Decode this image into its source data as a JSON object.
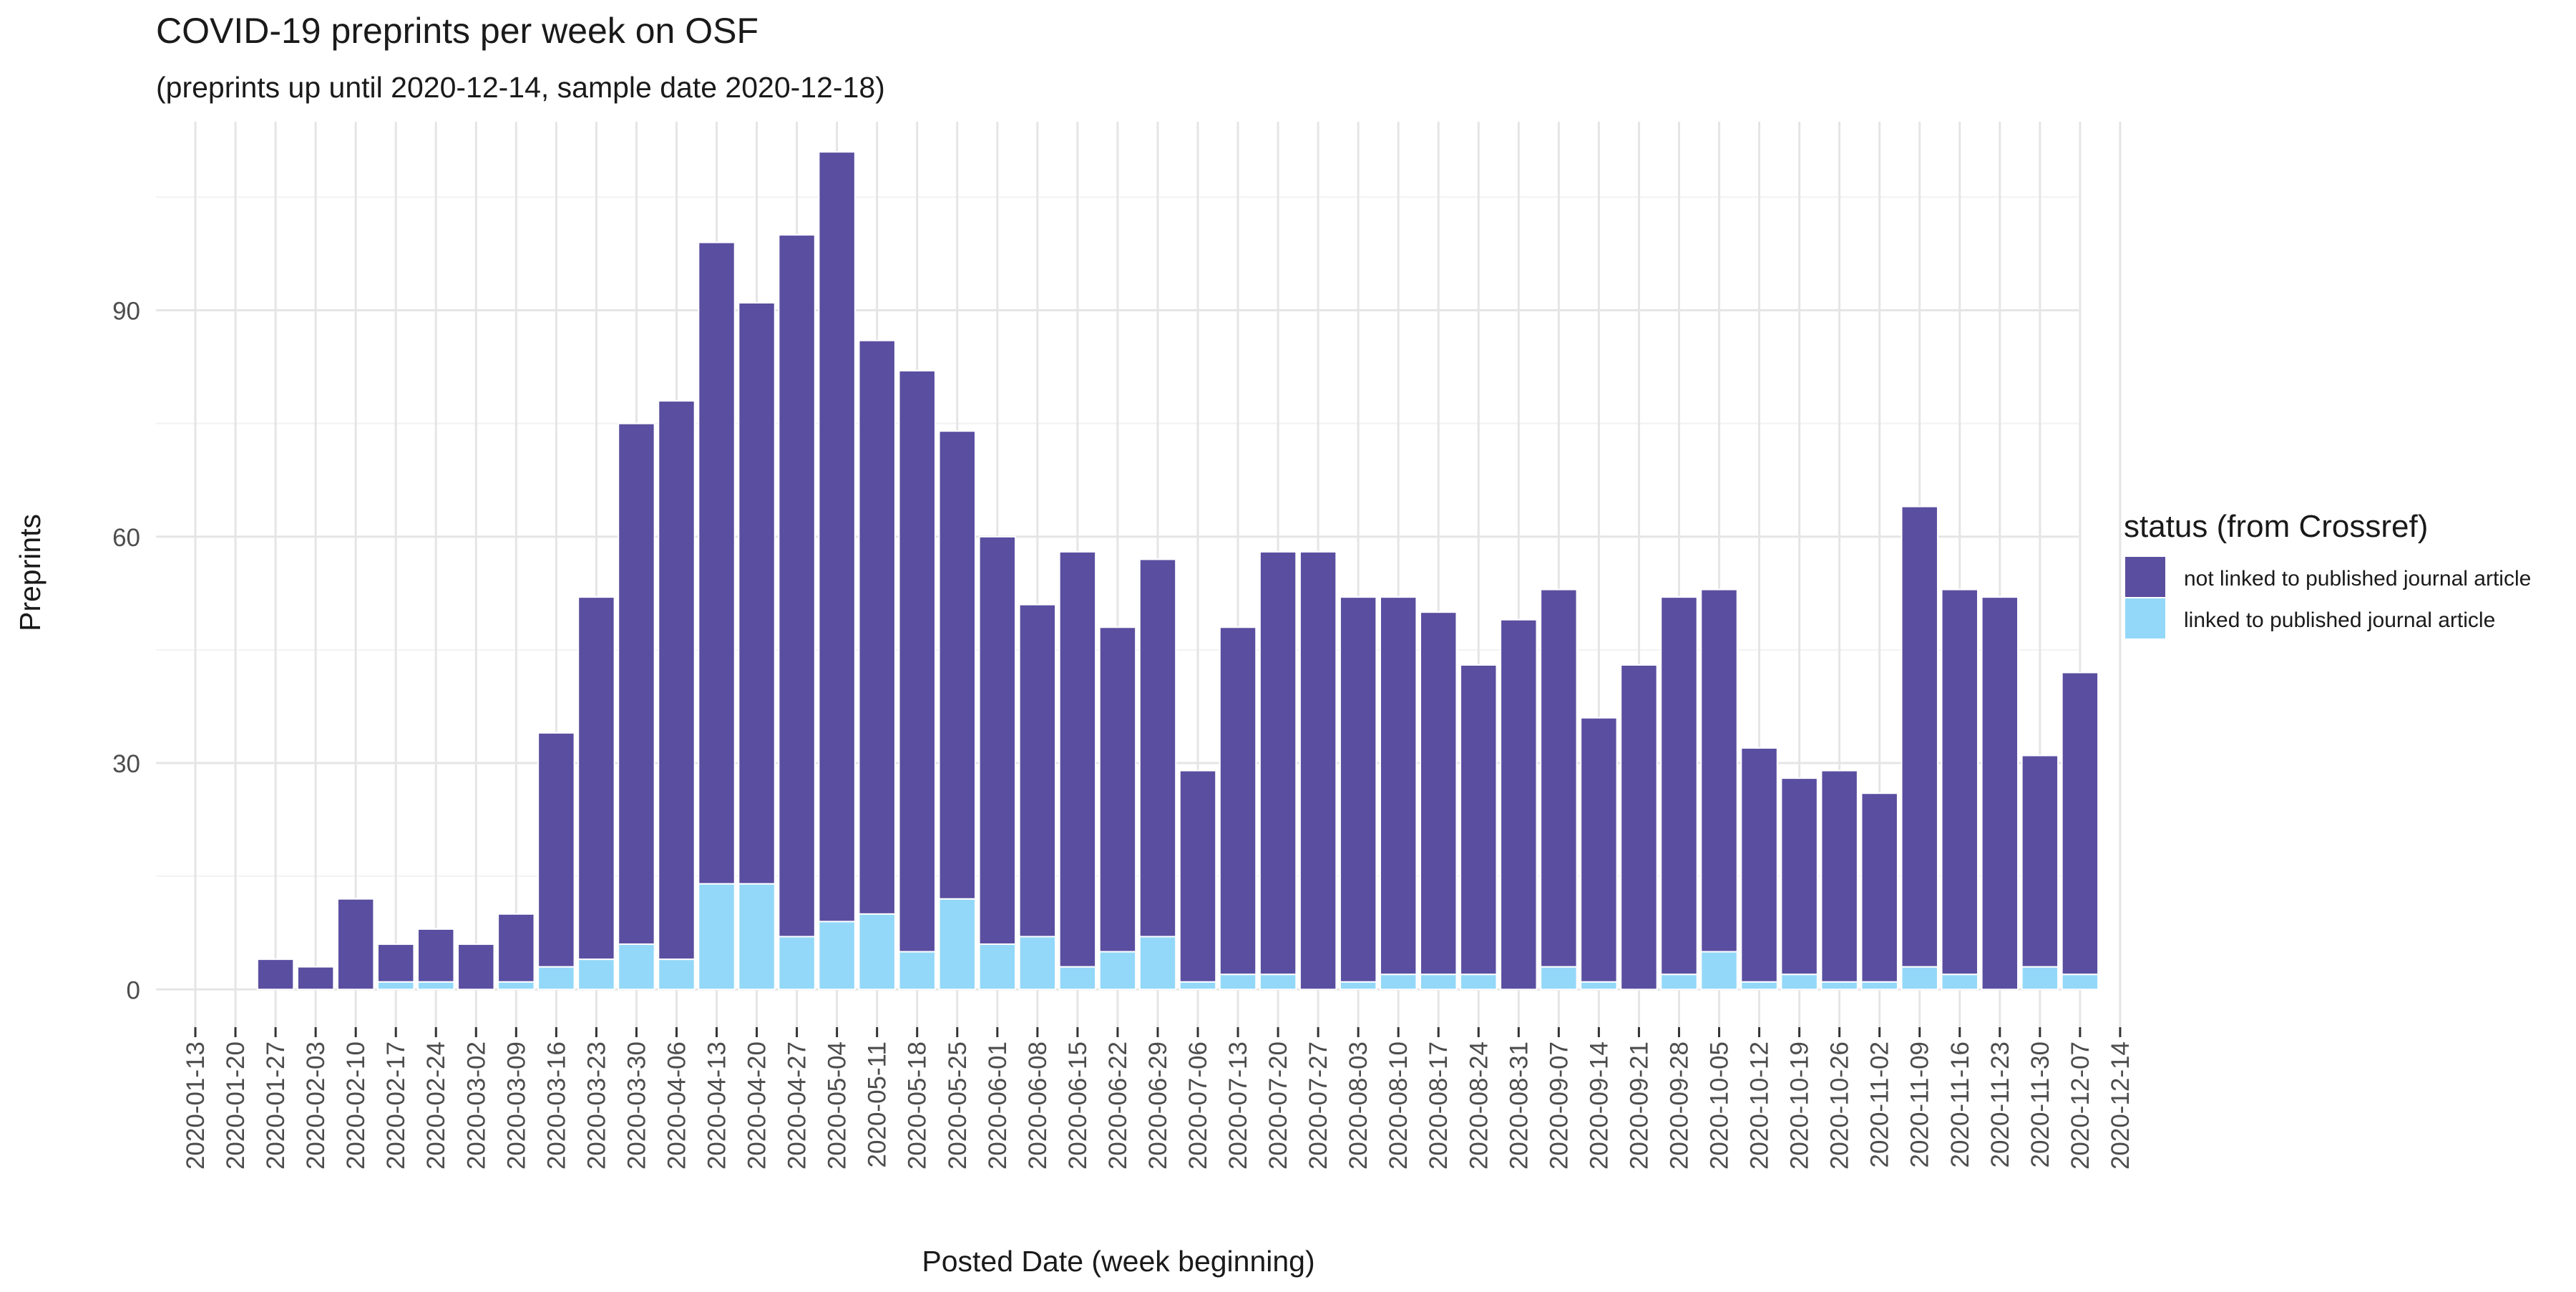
{
  "chart_data": {
    "type": "bar",
    "stacked": true,
    "title": "COVID-19 preprints per week on OSF",
    "subtitle": "(preprints up until 2020-12-14, sample date 2020-12-18)",
    "xlabel": "Posted Date (week beginning)",
    "ylabel": "Preprints",
    "ylim": [
      -5,
      115
    ],
    "yticks": [
      0,
      30,
      60,
      90
    ],
    "grid": true,
    "legend": {
      "title": "status (from Crossref)",
      "placement": "right",
      "entries": [
        {
          "label": "not linked to published journal article",
          "color": "#5A4EA0"
        },
        {
          "label": "linked to published journal article",
          "color": "#93D8F8"
        }
      ]
    },
    "categories": [
      "2020-01-13",
      "2020-01-20",
      "2020-01-27",
      "2020-02-03",
      "2020-02-10",
      "2020-02-17",
      "2020-02-24",
      "2020-03-02",
      "2020-03-09",
      "2020-03-16",
      "2020-03-23",
      "2020-03-30",
      "2020-04-06",
      "2020-04-13",
      "2020-04-20",
      "2020-04-27",
      "2020-05-04",
      "2020-05-11",
      "2020-05-18",
      "2020-05-25",
      "2020-06-01",
      "2020-06-08",
      "2020-06-15",
      "2020-06-22",
      "2020-06-29",
      "2020-07-06",
      "2020-07-13",
      "2020-07-20",
      "2020-07-27",
      "2020-08-03",
      "2020-08-10",
      "2020-08-17",
      "2020-08-24",
      "2020-08-31",
      "2020-09-07",
      "2020-09-14",
      "2020-09-21",
      "2020-09-28",
      "2020-10-05",
      "2020-10-12",
      "2020-10-19",
      "2020-10-26",
      "2020-11-02",
      "2020-11-09",
      "2020-11-16",
      "2020-11-23",
      "2020-11-30",
      "2020-12-07",
      "2020-12-14"
    ],
    "series": [
      {
        "name": "linked to published journal article",
        "color": "#93D8F8",
        "values": [
          0,
          0,
          0,
          0,
          0,
          1,
          1,
          0,
          1,
          3,
          4,
          6,
          4,
          14,
          14,
          7,
          9,
          10,
          5,
          12,
          6,
          7,
          3,
          5,
          7,
          1,
          2,
          2,
          0,
          1,
          2,
          2,
          2,
          0,
          3,
          1,
          0,
          2,
          5,
          1,
          2,
          1,
          1,
          3,
          2,
          0,
          3,
          2,
          0
        ]
      },
      {
        "name": "not linked to published journal article",
        "color": "#5A4EA0",
        "values": [
          0,
          0,
          4,
          3,
          12,
          5,
          7,
          6,
          9,
          31,
          48,
          69,
          74,
          85,
          77,
          93,
          102,
          76,
          77,
          62,
          54,
          44,
          55,
          43,
          50,
          28,
          46,
          56,
          58,
          51,
          50,
          48,
          41,
          49,
          50,
          35,
          43,
          50,
          48,
          31,
          26,
          28,
          25,
          61,
          51,
          52,
          28,
          40,
          0
        ]
      }
    ],
    "colors": {
      "background": "#FFFFFF",
      "grid_major": "#E5E5E5",
      "grid_minor": "#F2F2F2",
      "text": "#1A1A1A",
      "tick_text": "#4D4D4D"
    }
  }
}
